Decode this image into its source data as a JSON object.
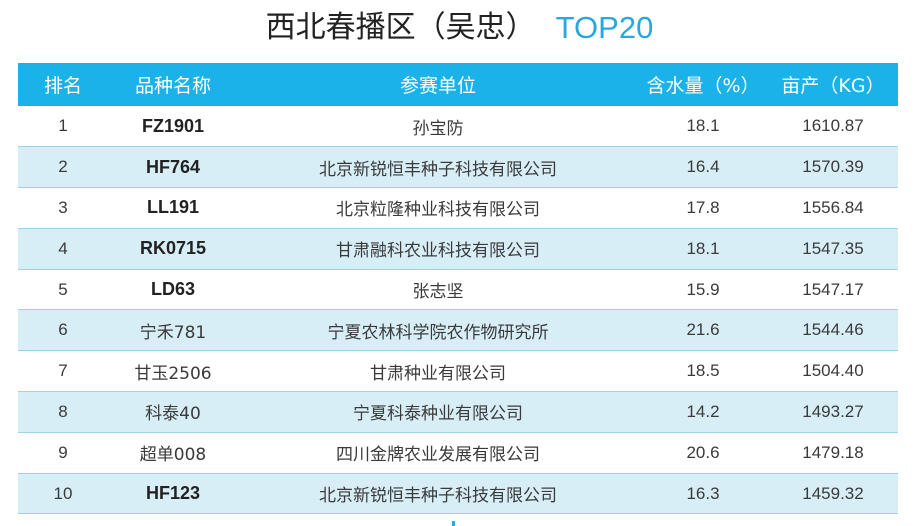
{
  "title": {
    "main": "西北春播区（吴忠）",
    "accent": "TOP20"
  },
  "colors": {
    "header_bg": "#1ab2e8",
    "alt_row_bg": "#d8eef7",
    "accent": "#29a8e0"
  },
  "table": {
    "headers": [
      "排名",
      "品种名称",
      "参赛单位",
      "含水量（%）",
      "亩产（KG）"
    ],
    "rows": [
      {
        "rank": "1",
        "variety": "FZ1901",
        "bold": true,
        "unit": "孙宝防",
        "moisture": "18.1",
        "yield": "1610.87"
      },
      {
        "rank": "2",
        "variety": "HF764",
        "bold": true,
        "unit": "北京新锐恒丰种子科技有限公司",
        "moisture": "16.4",
        "yield": "1570.39"
      },
      {
        "rank": "3",
        "variety": "LL191",
        "bold": true,
        "unit": "北京粒隆种业科技有限公司",
        "moisture": "17.8",
        "yield": "1556.84"
      },
      {
        "rank": "4",
        "variety": "RK0715",
        "bold": true,
        "unit": "甘肃融科农业科技有限公司",
        "moisture": "18.1",
        "yield": "1547.35"
      },
      {
        "rank": "5",
        "variety": "LD63",
        "bold": true,
        "unit": "张志坚",
        "moisture": "15.9",
        "yield": "1547.17"
      },
      {
        "rank": "6",
        "variety": "宁禾781",
        "bold": false,
        "unit": "宁夏农林科学院农作物研究所",
        "moisture": "21.6",
        "yield": "1544.46"
      },
      {
        "rank": "7",
        "variety": "甘玉2506",
        "bold": false,
        "unit": "甘肃种业有限公司",
        "moisture": "18.5",
        "yield": "1504.40"
      },
      {
        "rank": "8",
        "variety": "科泰40",
        "bold": false,
        "unit": "宁夏科泰种业有限公司",
        "moisture": "14.2",
        "yield": "1493.27"
      },
      {
        "rank": "9",
        "variety": "超单008",
        "bold": false,
        "unit": "四川金牌农业发展有限公司",
        "moisture": "20.6",
        "yield": "1479.18"
      },
      {
        "rank": "10",
        "variety": "HF123",
        "bold": true,
        "unit": "北京新锐恒丰种子科技有限公司",
        "moisture": "16.3",
        "yield": "1459.32"
      }
    ]
  }
}
